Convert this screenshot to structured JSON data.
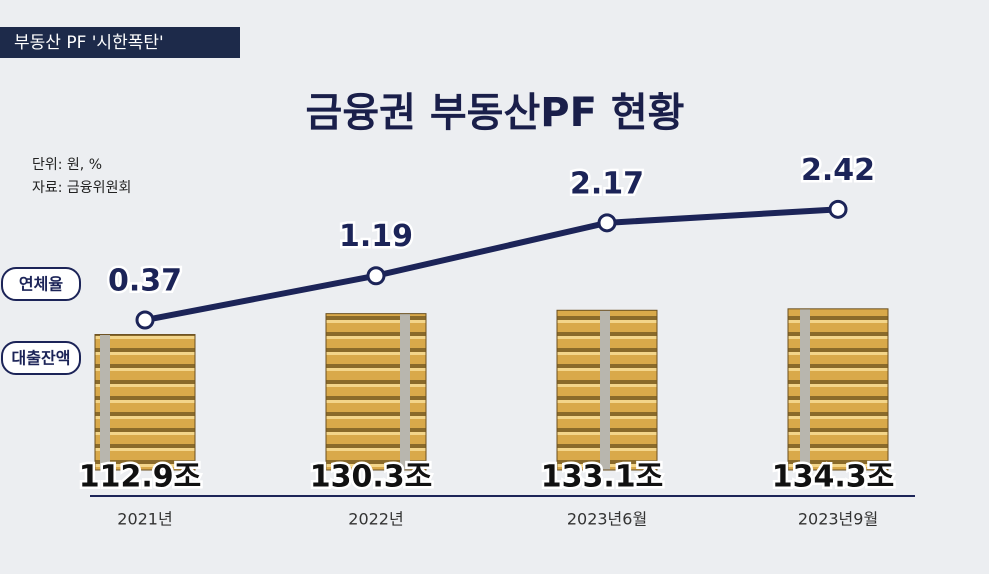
{
  "header": {
    "banner": "부동산 PF '시한폭탄'"
  },
  "chart_data": {
    "type": "combo",
    "title": "금융권 부동산PF 현황",
    "unit_note": "단위: 원, %",
    "source_note": "자료: 금융위원회",
    "categories": [
      "2021년",
      "2022년",
      "2023년6월",
      "2023년9월"
    ],
    "series": [
      {
        "name": "대출잔액",
        "type": "bar",
        "color": "#d9a94a",
        "values": [
          112.9,
          130.3,
          133.1,
          134.3
        ],
        "value_labels": [
          "112.9조",
          "130.3조",
          "133.1조",
          "134.3조"
        ]
      },
      {
        "name": "연체율",
        "type": "line",
        "color": "#1c2458",
        "values": [
          0.37,
          1.19,
          2.17,
          2.42
        ]
      }
    ]
  }
}
